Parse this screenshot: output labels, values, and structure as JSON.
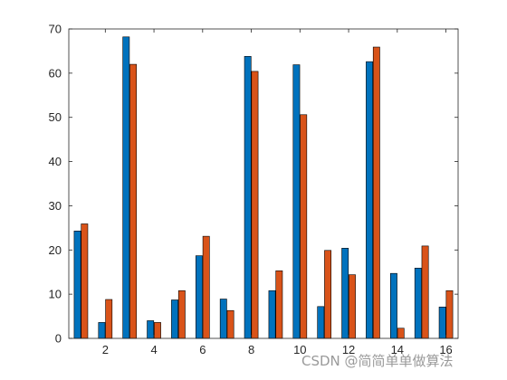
{
  "chart_data": {
    "type": "bar",
    "x": [
      1,
      2,
      3,
      4,
      5,
      6,
      7,
      8,
      9,
      10,
      11,
      12,
      13,
      14,
      15,
      16
    ],
    "series": [
      {
        "values": [
          24.3,
          3.6,
          68.2,
          4.0,
          8.7,
          18.7,
          8.9,
          63.8,
          10.8,
          61.9,
          7.2,
          20.4,
          62.6,
          14.7,
          15.9,
          7.1
        ]
      },
      {
        "values": [
          25.9,
          8.8,
          62.0,
          3.6,
          10.8,
          23.1,
          6.3,
          60.4,
          15.3,
          50.6,
          19.9,
          14.4,
          65.9,
          2.3,
          20.9,
          10.8
        ]
      }
    ],
    "xticks": [
      2,
      4,
      6,
      8,
      10,
      12,
      14,
      16
    ],
    "yticks": [
      0,
      10,
      20,
      30,
      40,
      50,
      60,
      70
    ],
    "xlim": [
      0.5,
      16.5
    ],
    "ylim": [
      0,
      70
    ],
    "grid": false,
    "colors": [
      "#0072BD",
      "#D95319"
    ],
    "title": "",
    "xlabel": "",
    "ylabel": ""
  },
  "watermark": "CSDN @简简单单做算法"
}
